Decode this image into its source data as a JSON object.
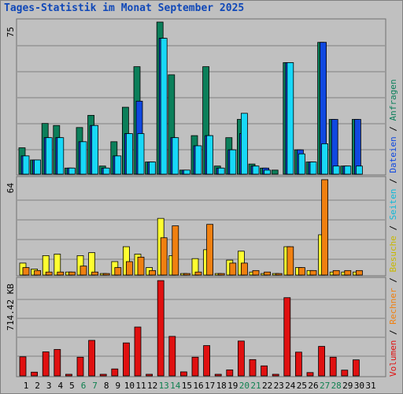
{
  "title": "Tages-Statistik im Monat September 2025",
  "colors": {
    "anfragen": "#0b7f5a",
    "dateien": "#1048e0",
    "seiten": "#18d8f8",
    "besuche": "#ffff30",
    "rechner": "#f08010",
    "volumen": "#e01010",
    "weekend_label": "#108050",
    "weekday_label": "#000000"
  },
  "right_legend": {
    "volumen": "Volumen",
    "rechner": "Rechner",
    "besuche": "Besuche",
    "seiten": "Seiten",
    "dateien": "Dateien",
    "anfragen": "Anfragen",
    "separator": " / "
  },
  "chart_data": [
    {
      "type": "bar",
      "panel": "anfragen",
      "categories": [
        "1",
        "2",
        "3",
        "4",
        "5",
        "6",
        "7",
        "8",
        "9",
        "10",
        "11",
        "12",
        "13",
        "14",
        "15",
        "16",
        "17",
        "18",
        "19",
        "20",
        "21",
        "22",
        "23",
        "24",
        "25",
        "26",
        "27",
        "28",
        "29",
        "30"
      ],
      "y_max_label": "75",
      "ylim": [
        0,
        75
      ],
      "weekend_days": [
        "6",
        "7",
        "13",
        "14",
        "20",
        "21",
        "27",
        "28"
      ],
      "series": [
        {
          "name": "Anfragen",
          "color": "#0b7f5a",
          "values": [
            13,
            7,
            25,
            24,
            3,
            23,
            29,
            4,
            16,
            33,
            53,
            6,
            75,
            49,
            2,
            19,
            53,
            4,
            18,
            27,
            5,
            3,
            2,
            55,
            12,
            6,
            65,
            27,
            4,
            27
          ]
        },
        {
          "name": "Dateien",
          "color": "#1048e0",
          "values": [
            9,
            7,
            18,
            18,
            3,
            16,
            24,
            3,
            9,
            20,
            36,
            6,
            67,
            18,
            2,
            14,
            19,
            3,
            12,
            20,
            4,
            3,
            0,
            55,
            12,
            6,
            65,
            27,
            4,
            27
          ]
        },
        {
          "name": "Seiten",
          "color": "#18d8f8",
          "values": [
            9,
            7,
            18,
            18,
            3,
            16,
            24,
            3,
            9,
            20,
            20,
            6,
            67,
            18,
            2,
            14,
            19,
            3,
            12,
            30,
            4,
            2,
            0,
            55,
            10,
            6,
            15,
            4,
            4,
            4
          ]
        }
      ]
    },
    {
      "type": "bar",
      "panel": "besuche",
      "categories": [
        "1",
        "2",
        "3",
        "4",
        "5",
        "6",
        "7",
        "8",
        "9",
        "10",
        "11",
        "12",
        "13",
        "14",
        "15",
        "16",
        "17",
        "18",
        "19",
        "20",
        "21",
        "22",
        "23",
        "24",
        "25",
        "26",
        "27",
        "28",
        "29",
        "30"
      ],
      "y_max_label": "64",
      "ylim": [
        0,
        64
      ],
      "series": [
        {
          "name": "Besuche",
          "color": "#ffff30",
          "values": [
            8,
            4,
            13,
            14,
            2,
            13,
            15,
            1,
            9,
            19,
            14,
            5,
            38,
            13,
            1,
            11,
            17,
            1,
            10,
            16,
            2,
            1,
            1,
            19,
            5,
            3,
            27,
            2,
            2,
            2
          ]
        },
        {
          "name": "Rechner",
          "color": "#f08010",
          "values": [
            5,
            3,
            2,
            2,
            2,
            6,
            2,
            1,
            5,
            9,
            12,
            3,
            25,
            33,
            1,
            2,
            34,
            1,
            8,
            8,
            3,
            2,
            1,
            19,
            5,
            3,
            64,
            3,
            3,
            3
          ]
        }
      ]
    },
    {
      "type": "bar",
      "panel": "volumen",
      "categories": [
        "1",
        "2",
        "3",
        "4",
        "5",
        "6",
        "7",
        "8",
        "9",
        "10",
        "11",
        "12",
        "13",
        "14",
        "15",
        "16",
        "17",
        "18",
        "19",
        "20",
        "21",
        "22",
        "23",
        "24",
        "25",
        "26",
        "27",
        "28",
        "29",
        "30"
      ],
      "y_max_label": "714.42 KB",
      "ylim": [
        0,
        714.42
      ],
      "series": [
        {
          "name": "Volumen",
          "color": "#e01010",
          "values": [
            143,
            28,
            180,
            198,
            12,
            140,
            266,
            12,
            52,
            247,
            366,
            12,
            714,
            296,
            30,
            140,
            227,
            12,
            45,
            261,
            122,
            75,
            12,
            586,
            178,
            25,
            221,
            140,
            43,
            120
          ]
        }
      ]
    }
  ],
  "x_axis_labels": [
    "1",
    "2",
    "3",
    "4",
    "5",
    "6",
    "7",
    "8",
    "9",
    "10",
    "11",
    "12",
    "13",
    "14",
    "15",
    "16",
    "17",
    "18",
    "19",
    "20",
    "21",
    "22",
    "23",
    "24",
    "25",
    "26",
    "27",
    "28",
    "29",
    "30",
    "31"
  ]
}
